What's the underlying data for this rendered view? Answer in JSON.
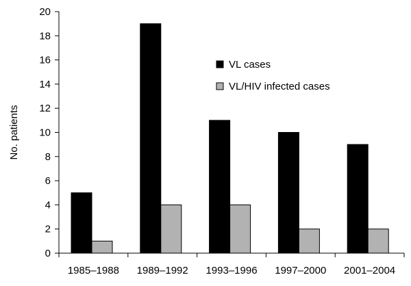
{
  "chart_data": {
    "type": "bar",
    "title": "",
    "xlabel": "",
    "ylabel": "No. patients",
    "ylim": [
      0,
      20
    ],
    "ytick_step": 2,
    "grid": false,
    "legend_position": "top-right",
    "categories": [
      "1985–1988",
      "1989–1992",
      "1993–1996",
      "1997–2000",
      "2001–2004"
    ],
    "series": [
      {
        "name": "VL cases",
        "color": "#000000",
        "values": [
          5,
          19,
          11,
          10,
          9
        ]
      },
      {
        "name": "VL/HIV infected cases",
        "color": "#b2b2b2",
        "values": [
          1,
          4,
          4,
          2,
          2
        ]
      }
    ]
  }
}
